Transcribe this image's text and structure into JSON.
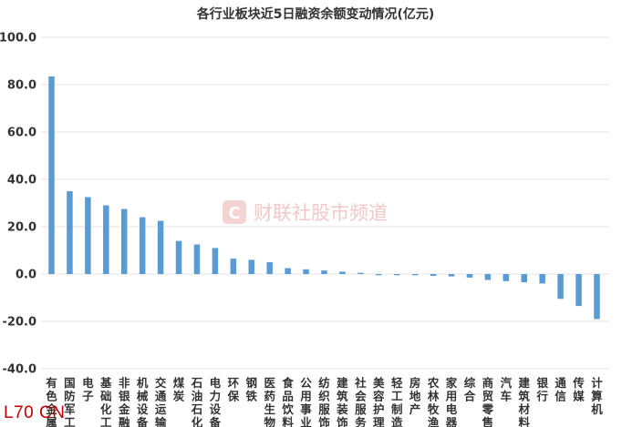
{
  "chart_data": {
    "type": "bar",
    "title": "各行业板块近5日融资余额变动情况(亿元)",
    "ylim": [
      -40,
      100
    ],
    "yticks": [
      "100.0",
      "80.0",
      "60.0",
      "40.0",
      "20.0",
      "0.0",
      "-20.0",
      "-40.0"
    ],
    "ytick_values": [
      100,
      80,
      60,
      40,
      20,
      0,
      -20,
      -40
    ],
    "grid": true,
    "legend": "none",
    "bar_color": "#5b9bd5",
    "categories": [
      "有色金属",
      "国防军工",
      "电子",
      "基础化工",
      "非银金融",
      "机械设备",
      "交通运输",
      "煤炭",
      "石油石化",
      "电力设备",
      "环保",
      "钢铁",
      "医药生物",
      "食品饮料",
      "公用事业",
      "纺织服饰",
      "建筑装饰",
      "社会服务",
      "美容护理",
      "轻工制造",
      "房地产",
      "农林牧渔",
      "家用电器",
      "综合",
      "商贸零售",
      "汽车",
      "建筑材料",
      "银行",
      "通信",
      "传媒",
      "计算机"
    ],
    "values": [
      83.5,
      35.0,
      32.5,
      29.0,
      27.5,
      24.0,
      22.5,
      14.0,
      12.5,
      11.0,
      6.5,
      6.0,
      5.0,
      2.5,
      2.0,
      1.5,
      1.0,
      0.5,
      -0.5,
      -0.5,
      -0.5,
      -0.8,
      -1.0,
      -1.5,
      -2.5,
      -3.0,
      -3.5,
      -4.0,
      -10.5,
      -13.5,
      -19.0
    ]
  },
  "watermark": {
    "text": "财联社股市频道",
    "logo_letter": "C"
  },
  "corner_label": "L70 CN"
}
